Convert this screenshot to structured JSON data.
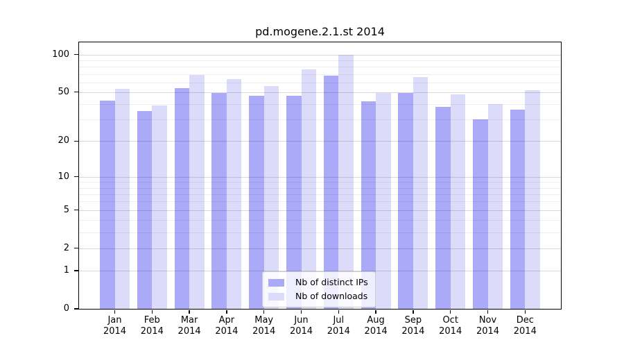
{
  "chart_data": {
    "type": "bar",
    "title": "pd.mogene.2.1.st 2014",
    "months": [
      "Jan",
      "Feb",
      "Mar",
      "Apr",
      "May",
      "Jun",
      "Jul",
      "Aug",
      "Sep",
      "Oct",
      "Nov",
      "Dec"
    ],
    "year": "2014",
    "series": [
      {
        "name": "Nb of distinct IPs",
        "slug": "distinct-ips",
        "color": "#aaaaf8",
        "values": [
          43,
          35,
          54,
          49,
          47,
          47,
          68,
          42,
          49,
          38,
          30,
          36
        ]
      },
      {
        "name": "Nb of downloads",
        "slug": "downloads",
        "color": "#dcdcfa",
        "values": [
          53,
          39,
          69,
          64,
          56,
          76,
          100,
          49,
          66,
          48,
          40,
          52
        ]
      }
    ],
    "y_axis": {
      "scale": "log1p",
      "major_ticks": [
        100,
        50,
        20,
        10,
        5,
        2,
        1,
        0
      ],
      "minor_ticks": [
        3,
        4,
        6,
        7,
        8,
        9,
        30,
        40,
        60,
        70,
        80,
        90
      ],
      "ylim": [
        0,
        125
      ]
    },
    "grid": true,
    "legend_position": "lower center"
  }
}
